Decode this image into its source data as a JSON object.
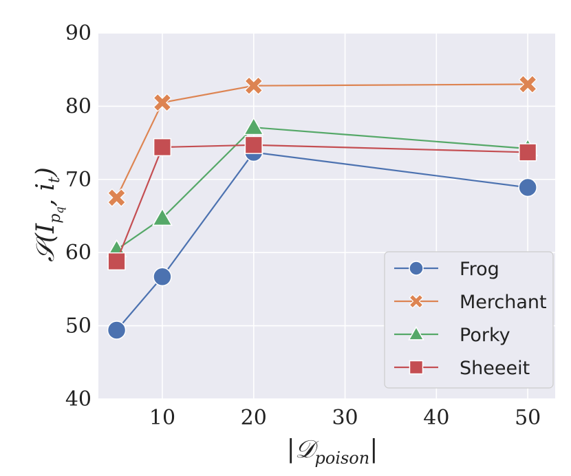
{
  "chart_data": {
    "type": "line",
    "title": "",
    "xlabel": "|𝒟poison|",
    "ylabel": "𝒮(Ipq, it)",
    "xlim": [
      3,
      53
    ],
    "ylim": [
      40,
      90
    ],
    "xticks": [
      10,
      20,
      30,
      40,
      50
    ],
    "yticks": [
      40,
      50,
      60,
      70,
      80,
      90
    ],
    "grid": true,
    "legend_position": "lower-right",
    "x": [
      5,
      10,
      20,
      50
    ],
    "series": [
      {
        "name": "Frog",
        "marker": "circle",
        "color": "#4C72B0",
        "values": [
          49.4,
          56.7,
          73.7,
          68.9
        ]
      },
      {
        "name": "Merchant",
        "marker": "x",
        "color": "#DD8452",
        "values": [
          67.5,
          80.5,
          82.8,
          83.0
        ]
      },
      {
        "name": "Porky",
        "marker": "triangle",
        "color": "#55A868",
        "values": [
          60.4,
          64.7,
          77.1,
          74.2
        ]
      },
      {
        "name": "Sheeeit",
        "marker": "square",
        "color": "#C44E52",
        "values": [
          58.8,
          74.4,
          74.7,
          73.7
        ]
      }
    ]
  }
}
